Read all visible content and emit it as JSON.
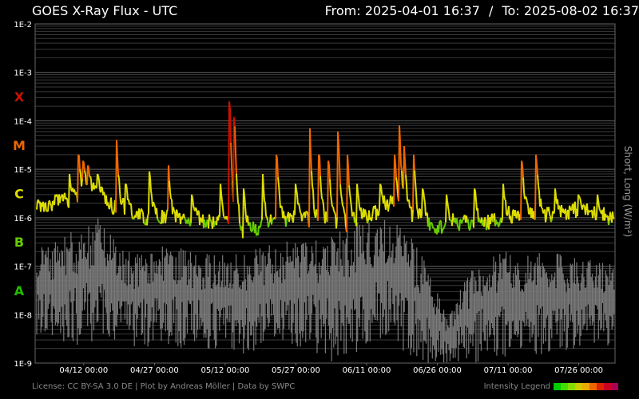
{
  "header": {
    "title": "GOES X-Ray Flux - UTC",
    "from_label": "From:",
    "from_value": "2025-04-01 16:37",
    "separator": "/",
    "to_label": "To:",
    "to_value": "2025-08-02 16:37"
  },
  "footer": {
    "credit": "License: CC BY-SA 3.0 DE | Plot by Andreas Möller | Data by SWPC",
    "legend_label": "Intensity Legend",
    "legend_colors": [
      "#00cc00",
      "#44dd00",
      "#88dd00",
      "#cccc00",
      "#eeaa00",
      "#ee6600",
      "#dd2200",
      "#cc0022",
      "#aa0055"
    ]
  },
  "side_label": "Short, Long (W/m²)",
  "colors": {
    "background": "#000000",
    "grid_major": "#666666",
    "grid_minor": "#3a3a3a",
    "axis_text": "#ffffff",
    "short_wave": "#7a7a7a",
    "class_x": "#cc1100",
    "class_m": "#ee6600",
    "class_c": "#dddd00",
    "class_b": "#66cc00",
    "class_a": "#22bb00"
  },
  "chart_data": {
    "type": "line",
    "title": "GOES X-Ray Flux - UTC",
    "y_scale": "log",
    "ylim": [
      "1E-9",
      "1E-2"
    ],
    "y_ticks": [
      "1E-9",
      "1E-8",
      "1E-7",
      "1E-6",
      "1E-5",
      "1E-4",
      "1E-3",
      "1E-2"
    ],
    "xlim": [
      "2025-04-01 16:37",
      "2025-08-02 16:37"
    ],
    "x_ticks": [
      "04/12 00:00",
      "04/27 00:00",
      "05/12 00:00",
      "05/27 00:00",
      "06/11 00:00",
      "06/26 00:00",
      "07/11 00:00",
      "07/26 00:00"
    ],
    "flare_classes": [
      {
        "label": "X",
        "flux": "1E-4",
        "color": "#cc1100"
      },
      {
        "label": "M",
        "flux": "1E-5",
        "color": "#ee6600"
      },
      {
        "label": "C",
        "flux": "1E-6",
        "color": "#dddd00"
      },
      {
        "label": "B",
        "flux": "1E-7",
        "color": "#66cc00"
      },
      {
        "label": "A",
        "flux": "1E-8",
        "color": "#22bb00"
      }
    ],
    "grid": true,
    "long_background": [
      {
        "date": "2025-04-01",
        "flux": 1.5e-06
      },
      {
        "date": "2025-04-05",
        "flux": 2e-06
      },
      {
        "date": "2025-04-10",
        "flux": 2.5e-06
      },
      {
        "date": "2025-04-14",
        "flux": 3.5e-06
      },
      {
        "date": "2025-04-19",
        "flux": 1.5e-06
      },
      {
        "date": "2025-04-25",
        "flux": 1e-06
      },
      {
        "date": "2025-05-01",
        "flux": 1e-06
      },
      {
        "date": "2025-05-06",
        "flux": 9e-07
      },
      {
        "date": "2025-05-12",
        "flux": 8e-07
      },
      {
        "date": "2025-05-16",
        "flux": 5e-07
      },
      {
        "date": "2025-05-21",
        "flux": 7e-07
      },
      {
        "date": "2025-05-27",
        "flux": 1e-06
      },
      {
        "date": "2025-06-02",
        "flux": 8e-07
      },
      {
        "date": "2025-06-07",
        "flux": 7e-07
      },
      {
        "date": "2025-06-11",
        "flux": 1e-06
      },
      {
        "date": "2025-06-16",
        "flux": 2e-06
      },
      {
        "date": "2025-06-21",
        "flux": 1e-06
      },
      {
        "date": "2025-06-25",
        "flux": 6e-07
      },
      {
        "date": "2025-06-30",
        "flux": 8e-07
      },
      {
        "date": "2025-07-05",
        "flux": 7e-07
      },
      {
        "date": "2025-07-10",
        "flux": 1e-06
      },
      {
        "date": "2025-07-15",
        "flux": 1.2e-06
      },
      {
        "date": "2025-07-20",
        "flux": 1.2e-06
      },
      {
        "date": "2025-07-26",
        "flux": 1.5e-06
      },
      {
        "date": "2025-08-02",
        "flux": 1e-06
      }
    ],
    "flares": [
      {
        "date": "2025-04-06",
        "flux": 3e-06
      },
      {
        "date": "2025-04-09",
        "flux": 8e-06
      },
      {
        "date": "2025-04-11",
        "flux": 2e-05
      },
      {
        "date": "2025-04-12",
        "flux": 1.5e-05
      },
      {
        "date": "2025-04-13",
        "flux": 1.2e-05
      },
      {
        "date": "2025-04-15",
        "flux": 8e-06
      },
      {
        "date": "2025-04-19",
        "flux": 4e-05
      },
      {
        "date": "2025-04-21",
        "flux": 5e-06
      },
      {
        "date": "2025-04-26",
        "flux": 9e-06
      },
      {
        "date": "2025-04-30",
        "flux": 1.2e-05
      },
      {
        "date": "2025-05-05",
        "flux": 3e-06
      },
      {
        "date": "2025-05-11",
        "flux": 5e-06
      },
      {
        "date": "2025-05-13",
        "flux": 0.00025
      },
      {
        "date": "2025-05-14",
        "flux": 0.00012
      },
      {
        "date": "2025-05-16",
        "flux": 4e-06
      },
      {
        "date": "2025-05-20",
        "flux": 8e-06
      },
      {
        "date": "2025-05-23",
        "flux": 2e-05
      },
      {
        "date": "2025-05-27",
        "flux": 5e-06
      },
      {
        "date": "2025-05-30",
        "flux": 7e-05
      },
      {
        "date": "2025-06-01",
        "flux": 2e-05
      },
      {
        "date": "2025-06-03",
        "flux": 1.5e-05
      },
      {
        "date": "2025-06-05",
        "flux": 6e-05
      },
      {
        "date": "2025-06-07",
        "flux": 2e-05
      },
      {
        "date": "2025-06-09",
        "flux": 5e-06
      },
      {
        "date": "2025-06-14",
        "flux": 5e-06
      },
      {
        "date": "2025-06-17",
        "flux": 2e-05
      },
      {
        "date": "2025-06-18",
        "flux": 8e-05
      },
      {
        "date": "2025-06-19",
        "flux": 3e-05
      },
      {
        "date": "2025-06-21",
        "flux": 2e-05
      },
      {
        "date": "2025-06-23",
        "flux": 4e-06
      },
      {
        "date": "2025-06-28",
        "flux": 3e-06
      },
      {
        "date": "2025-07-04",
        "flux": 4e-06
      },
      {
        "date": "2025-07-10",
        "flux": 5e-06
      },
      {
        "date": "2025-07-14",
        "flux": 1.5e-05
      },
      {
        "date": "2025-07-17",
        "flux": 2e-05
      },
      {
        "date": "2025-07-21",
        "flux": 4e-06
      },
      {
        "date": "2025-07-26",
        "flux": 3e-06
      },
      {
        "date": "2025-07-30",
        "flux": 3e-06
      }
    ],
    "short_envelope": [
      {
        "date": "2025-04-01",
        "low": 4e-09,
        "high": 2e-07
      },
      {
        "date": "2025-04-08",
        "low": 2e-09,
        "high": 5e-07
      },
      {
        "date": "2025-04-15",
        "low": 3e-09,
        "high": 1e-06
      },
      {
        "date": "2025-04-22",
        "low": 2e-09,
        "high": 2e-07
      },
      {
        "date": "2025-04-30",
        "low": 2e-09,
        "high": 3e-07
      },
      {
        "date": "2025-05-08",
        "low": 2e-09,
        "high": 2e-07
      },
      {
        "date": "2025-05-15",
        "low": 1.5e-09,
        "high": 2e-07
      },
      {
        "date": "2025-05-22",
        "low": 2e-09,
        "high": 3e-07
      },
      {
        "date": "2025-05-28",
        "low": 2e-09,
        "high": 4e-07
      },
      {
        "date": "2025-06-04",
        "low": 1e-09,
        "high": 5e-07
      },
      {
        "date": "2025-06-11",
        "low": 2e-09,
        "high": 1e-06
      },
      {
        "date": "2025-06-16",
        "low": 3e-09,
        "high": 1e-06
      },
      {
        "date": "2025-06-22",
        "low": 1e-09,
        "high": 3e-07
      },
      {
        "date": "2025-06-28",
        "low": 1e-09,
        "high": 1e-08
      },
      {
        "date": "2025-07-05",
        "low": 1e-09,
        "high": 2e-07
      },
      {
        "date": "2025-07-12",
        "low": 1.5e-09,
        "high": 2e-07
      },
      {
        "date": "2025-07-20",
        "low": 1.5e-09,
        "high": 2e-07
      },
      {
        "date": "2025-07-27",
        "low": 2e-09,
        "high": 1.5e-07
      },
      {
        "date": "2025-08-02",
        "low": 2e-09,
        "high": 1.5e-07
      }
    ]
  }
}
